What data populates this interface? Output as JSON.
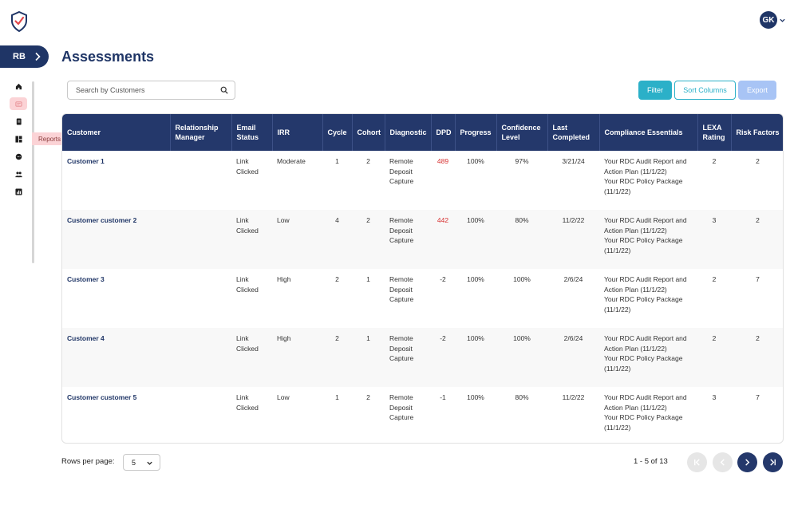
{
  "header": {
    "avatar_initials": "GK"
  },
  "workspace": {
    "initials": "RB"
  },
  "sidebar": {
    "items": [
      {
        "name": "home-icon",
        "active": false
      },
      {
        "name": "assessments-icon",
        "active": true
      },
      {
        "name": "document-icon",
        "active": false
      },
      {
        "name": "reports-icon",
        "active": false
      },
      {
        "name": "chat-icon",
        "active": false
      },
      {
        "name": "users-icon",
        "active": false
      },
      {
        "name": "analytics-icon",
        "active": false
      }
    ],
    "tooltip": "Reports"
  },
  "page": {
    "title": "Assessments"
  },
  "search": {
    "placeholder": "Search by Customers"
  },
  "toolbar": {
    "filter_label": "Filter",
    "sort_label": "Sort Columns",
    "export_label": "Export"
  },
  "table": {
    "columns": [
      "Customer",
      "Relationship Manager",
      "Email Status",
      "IRR",
      "Cycle",
      "Cohort",
      "Diagnostic",
      "DPD",
      "Progress",
      "Confidence Level",
      "Last Completed",
      "Compliance Essentials",
      "LEXA Rating",
      "Risk Factors"
    ],
    "rows": [
      {
        "customer": "Customer 1",
        "manager": "",
        "email_status": "Link Clicked",
        "irr": "Moderate",
        "cycle": "1",
        "cohort": "2",
        "diagnostic": "Remote Deposit Capture",
        "dpd": "489",
        "dpd_alert": true,
        "progress": "100%",
        "confidence": "97%",
        "last_completed": "3/21/24",
        "compliance_1": "Your RDC Audit Report and Action Plan (11/1/22)",
        "compliance_2": "Your RDC Policy Package (11/1/22)",
        "lexa": "2",
        "risk": "2"
      },
      {
        "customer": "Customer customer 2",
        "manager": "",
        "email_status": "Link Clicked",
        "irr": "Low",
        "cycle": "4",
        "cohort": "2",
        "diagnostic": "Remote Deposit Capture",
        "dpd": "442",
        "dpd_alert": true,
        "progress": "100%",
        "confidence": "80%",
        "last_completed": "11/2/22",
        "compliance_1": "Your RDC Audit Report and Action Plan (11/1/22)",
        "compliance_2": "Your RDC Policy Package (11/1/22)",
        "lexa": "3",
        "risk": "2"
      },
      {
        "customer": "Customer 3",
        "manager": "",
        "email_status": "Link Clicked",
        "irr": "High",
        "cycle": "2",
        "cohort": "1",
        "diagnostic": "Remote Deposit Capture",
        "dpd": "-2",
        "dpd_alert": false,
        "progress": "100%",
        "confidence": "100%",
        "last_completed": "2/6/24",
        "compliance_1": "Your RDC Audit Report and Action Plan (11/1/22)",
        "compliance_2": "Your RDC Policy Package (11/1/22)",
        "lexa": "2",
        "risk": "7"
      },
      {
        "customer": "Customer 4",
        "manager": "",
        "email_status": "Link Clicked",
        "irr": "High",
        "cycle": "2",
        "cohort": "1",
        "diagnostic": "Remote Deposit Capture",
        "dpd": "-2",
        "dpd_alert": false,
        "progress": "100%",
        "confidence": "100%",
        "last_completed": "2/6/24",
        "compliance_1": "Your RDC Audit Report and Action Plan (11/1/22)",
        "compliance_2": "Your RDC Policy Package (11/1/22)",
        "lexa": "2",
        "risk": "2"
      },
      {
        "customer": "Customer customer 5",
        "manager": "",
        "email_status": "Link Clicked",
        "irr": "Low",
        "cycle": "1",
        "cohort": "2",
        "diagnostic": "Remote Deposit Capture",
        "dpd": "-1",
        "dpd_alert": false,
        "progress": "100%",
        "confidence": "80%",
        "last_completed": "11/2/22",
        "compliance_1": "Your RDC Audit Report and Action Plan (11/1/22)",
        "compliance_2": "Your RDC Policy Package (11/1/22)",
        "lexa": "3",
        "risk": "7"
      }
    ]
  },
  "pagination": {
    "rows_label": "Rows per page:",
    "rows_value": "5",
    "count_text": "1 - 5 of 13"
  },
  "colors": {
    "primary": "#24386b",
    "accent": "#2bb0c8",
    "alert": "#d73131",
    "active_bg": "#fbd3d6"
  }
}
